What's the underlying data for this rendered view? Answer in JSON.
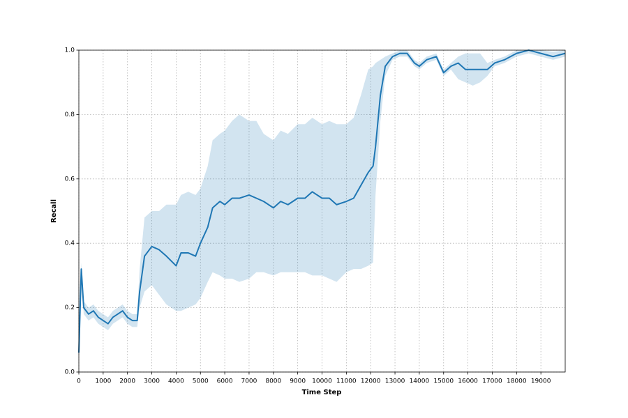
{
  "chart_data": {
    "type": "line",
    "xlabel": "Time Step",
    "ylabel": "Recall",
    "xlim": [
      0,
      20000
    ],
    "ylim": [
      0,
      1
    ],
    "xticks": [
      0,
      1000,
      2000,
      3000,
      4000,
      5000,
      6000,
      7000,
      8000,
      9000,
      10000,
      11000,
      12000,
      13000,
      14000,
      15000,
      16000,
      17000,
      18000,
      19000
    ],
    "yticks": [
      {
        "value": 0,
        "label": "0.0"
      },
      0.2,
      0.4,
      0.6,
      0.8,
      {
        "value": 1,
        "label": "1.0"
      }
    ],
    "grid": true,
    "x": [
      0,
      100,
      200,
      400,
      600,
      800,
      1000,
      1200,
      1400,
      1600,
      1800,
      2000,
      2200,
      2400,
      2500,
      2700,
      3000,
      3300,
      3600,
      4000,
      4200,
      4500,
      4800,
      5000,
      5300,
      5500,
      5800,
      6000,
      6300,
      6600,
      7000,
      7300,
      7600,
      8000,
      8300,
      8600,
      9000,
      9300,
      9600,
      10000,
      10300,
      10600,
      11000,
      11300,
      11600,
      11900,
      12100,
      12200,
      12400,
      12600,
      12900,
      13200,
      13500,
      13800,
      14000,
      14300,
      14700,
      15000,
      15300,
      15600,
      15900,
      16200,
      16500,
      16800,
      17100,
      17500,
      18000,
      18500,
      19000,
      19500,
      20000
    ],
    "series": [
      {
        "color": "#1f77b4",
        "band_color": "#1f77b4",
        "values": [
          0.06,
          0.32,
          0.2,
          0.18,
          0.19,
          0.17,
          0.16,
          0.15,
          0.17,
          0.18,
          0.19,
          0.17,
          0.16,
          0.16,
          0.25,
          0.36,
          0.39,
          0.38,
          0.36,
          0.33,
          0.37,
          0.37,
          0.36,
          0.4,
          0.45,
          0.51,
          0.53,
          0.52,
          0.54,
          0.54,
          0.55,
          0.54,
          0.53,
          0.51,
          0.53,
          0.52,
          0.54,
          0.54,
          0.56,
          0.54,
          0.54,
          0.52,
          0.53,
          0.54,
          0.58,
          0.62,
          0.64,
          0.7,
          0.86,
          0.95,
          0.98,
          0.99,
          0.99,
          0.96,
          0.95,
          0.97,
          0.98,
          0.93,
          0.95,
          0.96,
          0.94,
          0.94,
          0.94,
          0.94,
          0.96,
          0.97,
          0.99,
          1.0,
          0.99,
          0.98,
          0.99
        ],
        "lower": [
          0.06,
          0.3,
          0.18,
          0.16,
          0.17,
          0.15,
          0.14,
          0.13,
          0.15,
          0.16,
          0.17,
          0.15,
          0.14,
          0.14,
          0.2,
          0.25,
          0.27,
          0.24,
          0.21,
          0.19,
          0.19,
          0.2,
          0.21,
          0.23,
          0.28,
          0.31,
          0.3,
          0.29,
          0.29,
          0.28,
          0.29,
          0.31,
          0.31,
          0.3,
          0.31,
          0.31,
          0.31,
          0.31,
          0.3,
          0.3,
          0.29,
          0.28,
          0.31,
          0.32,
          0.32,
          0.33,
          0.34,
          0.55,
          0.78,
          0.92,
          0.97,
          0.98,
          0.98,
          0.95,
          0.94,
          0.96,
          0.97,
          0.92,
          0.94,
          0.91,
          0.9,
          0.89,
          0.9,
          0.92,
          0.95,
          0.96,
          0.98,
          0.99,
          0.98,
          0.97,
          0.98
        ],
        "upper": [
          0.06,
          0.34,
          0.22,
          0.2,
          0.21,
          0.19,
          0.18,
          0.17,
          0.19,
          0.2,
          0.21,
          0.19,
          0.18,
          0.18,
          0.32,
          0.48,
          0.5,
          0.5,
          0.52,
          0.52,
          0.55,
          0.56,
          0.55,
          0.57,
          0.64,
          0.72,
          0.74,
          0.75,
          0.78,
          0.8,
          0.78,
          0.78,
          0.74,
          0.72,
          0.75,
          0.74,
          0.77,
          0.77,
          0.79,
          0.77,
          0.78,
          0.77,
          0.77,
          0.79,
          0.86,
          0.94,
          0.95,
          0.96,
          0.97,
          0.98,
          0.99,
          1.0,
          1.0,
          0.97,
          0.96,
          0.98,
          0.99,
          0.94,
          0.96,
          0.98,
          0.99,
          0.99,
          0.99,
          0.96,
          0.97,
          0.98,
          1.0,
          1.0,
          1.0,
          0.995,
          1.0
        ]
      }
    ]
  }
}
